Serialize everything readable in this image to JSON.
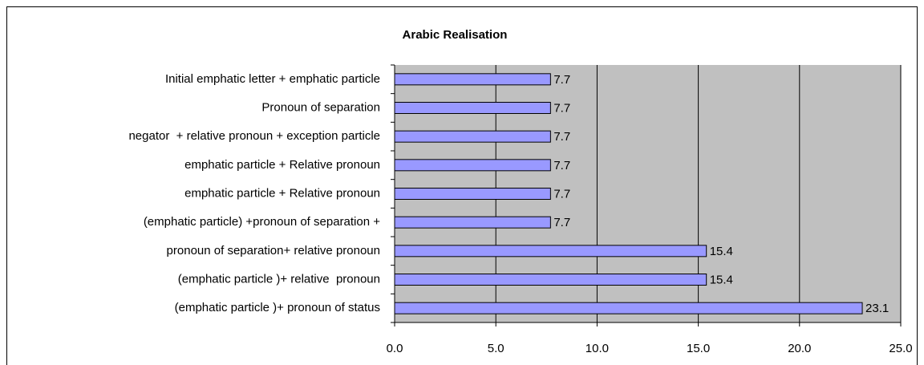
{
  "chart_data": {
    "type": "barh",
    "title": "Arabic Realisation",
    "categories": [
      "Initial emphatic letter + emphatic particle",
      "Pronoun of separation",
      "negator  + relative pronoun + exception particle",
      "emphatic particle + Relative pronoun",
      "emphatic particle + Relative pronoun",
      "(emphatic particle) +pronoun of separation +",
      "pronoun of separation+ relative pronoun",
      "(emphatic particle )+ relative  pronoun",
      "(emphatic particle )+ pronoun of status"
    ],
    "values": [
      7.7,
      7.7,
      7.7,
      7.7,
      7.7,
      7.7,
      15.4,
      15.4,
      23.1
    ],
    "color": "#9999ff",
    "xlim": [
      0,
      25
    ],
    "xticks": [
      {
        "value": 0,
        "label": "0.0"
      },
      {
        "value": 5,
        "label": "5.0"
      },
      {
        "value": 10,
        "label": "10.0"
      },
      {
        "value": 15,
        "label": "15.0"
      },
      {
        "value": 20,
        "label": "20.0"
      },
      {
        "value": 25,
        "label": "25.0"
      }
    ],
    "grid": true
  }
}
